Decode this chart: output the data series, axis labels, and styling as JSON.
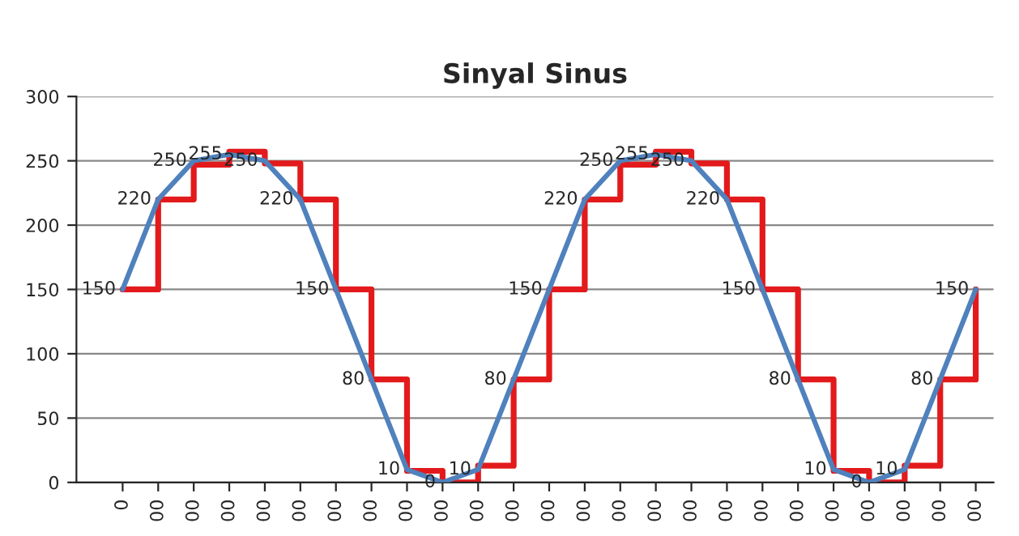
{
  "chart_data": {
    "type": "line",
    "title": "Sinyal Sinus",
    "categories": [
      "0",
      "00",
      "00",
      "00",
      "00",
      "00",
      "00",
      "00",
      "00",
      "00",
      "00",
      "00",
      "00",
      "00",
      "00",
      "00",
      "00",
      "00",
      "00",
      "00",
      "00",
      "00",
      "00",
      "00",
      "00"
    ],
    "series": [
      {
        "color": "#4f81bd",
        "values": [
          150,
          220,
          250,
          255,
          250,
          220,
          150,
          80,
          10,
          0,
          10,
          80,
          150,
          220,
          250,
          255,
          250,
          220,
          150,
          80,
          10,
          0,
          10,
          80,
          150
        ],
        "value_labels": [
          "150",
          "220",
          "250",
          "255",
          "250",
          "220",
          "150",
          "80",
          "10",
          "0",
          "10",
          "80",
          "150",
          "220",
          "250",
          "255",
          "250",
          "220",
          "150",
          "80",
          "10",
          "0",
          "10",
          "80",
          "150"
        ]
      },
      {
        "type": "step",
        "color": "#e31a1c",
        "values": [
          150,
          220,
          247,
          257,
          248,
          220,
          150,
          80,
          9,
          0,
          13,
          80,
          150,
          220,
          247,
          257,
          248,
          220,
          150,
          80,
          9,
          0,
          13,
          80,
          150
        ]
      }
    ],
    "ylim": [
      0,
      300
    ],
    "yticks": [
      0,
      50,
      100,
      150,
      200,
      250,
      300
    ],
    "grid": "y",
    "marker": "none"
  }
}
